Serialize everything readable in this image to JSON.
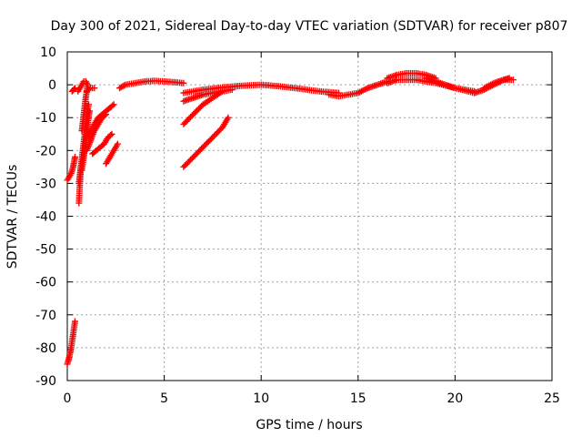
{
  "chart_data": {
    "type": "scatter",
    "title": "Day 300 of 2021, Sidereal Day-to-day VTEC variation (SDTVAR) for receiver p807",
    "xlabel": "GPS time / hours",
    "ylabel": "SDTVAR / TECUs",
    "xlim": [
      0,
      25
    ],
    "ylim": [
      -90,
      10
    ],
    "xticks": [
      0,
      5,
      10,
      15,
      20,
      25
    ],
    "yticks": [
      10,
      0,
      -10,
      -20,
      -30,
      -40,
      -50,
      -60,
      -70,
      -80,
      -90
    ],
    "grid": true,
    "marker": "+",
    "color": "#ff0000",
    "series": [
      {
        "name": "p807",
        "tracks": [
          {
            "x": [
              0.0,
              0.1,
              0.2,
              0.3,
              0.4
            ],
            "y": [
              -85,
              -83,
              -80,
              -76,
              -72
            ]
          },
          {
            "x": [
              0.0,
              0.1,
              0.2,
              0.3,
              0.4
            ],
            "y": [
              -29,
              -28,
              -27,
              -25,
              -22
            ]
          },
          {
            "x": [
              0.25,
              0.4
            ],
            "y": [
              -2,
              -1
            ]
          },
          {
            "x": [
              0.6,
              0.65,
              0.7
            ],
            "y": [
              -36,
              -30,
              -25
            ]
          },
          {
            "x": [
              0.55,
              0.65,
              0.75,
              0.85,
              0.95,
              1.05
            ],
            "y": [
              -2,
              -1,
              0,
              1,
              1,
              0
            ]
          },
          {
            "x": [
              0.6,
              0.7,
              0.8,
              0.9,
              1.0,
              1.1
            ],
            "y": [
              -30,
              -25,
              -20,
              -15,
              -10,
              -6
            ]
          },
          {
            "x": [
              0.75,
              0.85,
              0.95,
              1.05,
              1.15
            ],
            "y": [
              -26,
              -22,
              -17,
              -12,
              -8
            ]
          },
          {
            "x": [
              0.75,
              0.85,
              0.95,
              1.05
            ],
            "y": [
              -14,
              -9,
              -4,
              0
            ]
          },
          {
            "x": [
              1.0,
              1.2,
              1.4
            ],
            "y": [
              -2,
              -1,
              -1
            ]
          },
          {
            "x": [
              1.0,
              1.2,
              1.4,
              1.6,
              1.8,
              2.0
            ],
            "y": [
              -20,
              -17,
              -14,
              -12,
              -10,
              -9
            ]
          },
          {
            "x": [
              1.1,
              1.3,
              1.5,
              1.7,
              1.9
            ],
            "y": [
              -16,
              -13,
              -11,
              -10,
              -9
            ]
          },
          {
            "x": [
              1.3,
              1.5,
              1.7,
              1.9,
              2.1,
              2.3
            ],
            "y": [
              -21,
              -20,
              -19,
              -18,
              -16,
              -15
            ]
          },
          {
            "x": [
              1.4,
              1.6,
              1.8,
              2.0,
              2.2,
              2.4
            ],
            "y": [
              -12,
              -10,
              -9,
              -8,
              -7,
              -6
            ]
          },
          {
            "x": [
              2.0,
              2.2,
              2.4,
              2.6
            ],
            "y": [
              -24,
              -22,
              -20,
              -18
            ]
          },
          {
            "x": [
              2.7,
              3.0,
              3.5,
              4.0,
              4.5,
              5.0,
              5.5,
              6.0
            ],
            "y": [
              -1,
              0,
              0.5,
              1,
              1.2,
              1.0,
              0.8,
              0.5
            ]
          },
          {
            "x": [
              6.0,
              6.5,
              7.0,
              7.5,
              8.0
            ],
            "y": [
              -12,
              -9,
              -6,
              -4,
              -2
            ]
          },
          {
            "x": [
              6.0,
              6.5,
              7.0,
              7.5,
              8.0,
              8.3
            ],
            "y": [
              -25,
              -22,
              -19,
              -16,
              -13,
              -10
            ]
          },
          {
            "x": [
              6.0,
              7.0,
              8.0,
              9.0,
              10.0,
              11.0,
              12.0,
              13.0,
              14.0
            ],
            "y": [
              -2.5,
              -1.5,
              -0.8,
              -0.3,
              0,
              -0.5,
              -1.2,
              -2,
              -2.5
            ]
          },
          {
            "x": [
              6.0,
              6.5,
              7.0,
              7.5,
              8.0,
              8.5
            ],
            "y": [
              -5,
              -4,
              -3,
              -2.5,
              -2,
              -1.5
            ]
          },
          {
            "x": [
              13.5,
              14.0,
              14.5,
              15.0,
              15.5,
              16.0,
              16.5
            ],
            "y": [
              -3,
              -3.5,
              -3,
              -2.5,
              -1,
              0,
              1
            ]
          },
          {
            "x": [
              16.5,
              17.0,
              17.5,
              18.0,
              18.5,
              19.0
            ],
            "y": [
              2,
              3,
              3.5,
              3.5,
              3,
              2
            ]
          },
          {
            "x": [
              16.5,
              17.0,
              18.0,
              19.0,
              20.0,
              21.0
            ],
            "y": [
              0.5,
              1.5,
              1.5,
              0.5,
              -1,
              -2.5
            ]
          },
          {
            "x": [
              18.5,
              19.0,
              19.5,
              20.0,
              20.5,
              21.0
            ],
            "y": [
              2,
              1,
              0,
              -1,
              -1.5,
              -2
            ]
          },
          {
            "x": [
              21.0,
              21.5,
              22.0,
              22.5,
              22.8
            ],
            "y": [
              -2.5,
              -1.5,
              0,
              1.5,
              2
            ]
          },
          {
            "x": [
              21.5,
              22.0,
              22.5,
              23.0
            ],
            "y": [
              -1,
              0.5,
              1.5,
              1.5
            ]
          }
        ]
      }
    ]
  }
}
